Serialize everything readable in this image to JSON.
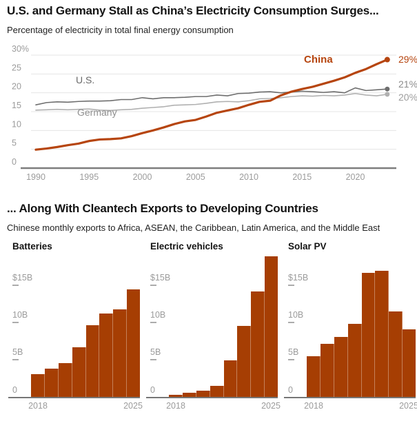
{
  "top_chart": {
    "title": "U.S. and Germany Stall as China’s Electricity Consumption Surges...",
    "subtitle": "Percentage of electricity in total final energy consumption",
    "series_labels": {
      "us": "U.S.",
      "germany": "Germany",
      "china": "China"
    },
    "end_labels": {
      "china": "29%",
      "us": "21%",
      "germany": "20%"
    }
  },
  "bottom": {
    "title": "... Along With Cleantech Exports to Developing Countries",
    "subtitle": "Chinese monthly exports to Africa, ASEAN, the Caribbean, Latin America, and the Middle East"
  },
  "colors": {
    "china_line": "#B6450F",
    "us_line": "#6E6E6E",
    "germany_line": "#B0B0B0",
    "bar_fill": "#A63E03",
    "axis_text": "#9B9B9B",
    "gridline": "#E4E4E4",
    "zero_line": "#7D7D7D"
  },
  "chart_data": [
    {
      "type": "line",
      "title": "U.S. and Germany Stall as China’s Electricity Consumption Surges...",
      "ylabel": "Percentage of electricity in total final energy consumption",
      "ylim": [
        0,
        30
      ],
      "grid": true,
      "x": [
        1990,
        1991,
        1992,
        1993,
        1994,
        1995,
        1996,
        1997,
        1998,
        1999,
        2000,
        2001,
        2002,
        2003,
        2004,
        2005,
        2006,
        2007,
        2008,
        2009,
        2010,
        2011,
        2012,
        2013,
        2014,
        2015,
        2016,
        2017,
        2018,
        2019,
        2020,
        2021,
        2022,
        2023
      ],
      "series": [
        {
          "name": "U.S.",
          "color": "#6E6E6E",
          "end_label": "21%",
          "values": [
            16.8,
            17.4,
            17.6,
            17.5,
            17.7,
            17.8,
            17.8,
            17.9,
            18.2,
            18.2,
            18.7,
            18.4,
            18.7,
            18.7,
            18.8,
            19.0,
            19.0,
            19.4,
            19.2,
            19.8,
            19.9,
            20.2,
            20.3,
            20.0,
            20.2,
            20.4,
            20.3,
            20.1,
            20.3,
            20.0,
            21.3,
            20.6,
            20.8,
            21.0
          ]
        },
        {
          "name": "Germany",
          "color": "#B0B0B0",
          "end_label": "20%",
          "values": [
            15.4,
            15.5,
            15.6,
            15.5,
            15.6,
            15.7,
            15.4,
            15.3,
            15.5,
            15.6,
            15.9,
            16.1,
            16.3,
            16.7,
            16.8,
            16.9,
            17.2,
            17.6,
            17.7,
            17.6,
            17.9,
            18.4,
            18.5,
            18.7,
            19.0,
            19.2,
            19.1,
            19.3,
            19.2,
            19.4,
            19.8,
            19.4,
            19.2,
            19.6
          ]
        },
        {
          "name": "China",
          "color": "#B6450F",
          "end_label": "29%",
          "values": [
            4.9,
            5.2,
            5.6,
            6.1,
            6.5,
            7.2,
            7.6,
            7.7,
            7.9,
            8.5,
            9.3,
            10.0,
            10.8,
            11.7,
            12.4,
            12.8,
            13.7,
            14.7,
            15.3,
            15.9,
            16.8,
            17.6,
            17.9,
            19.3,
            20.3,
            21.0,
            21.6,
            22.4,
            23.2,
            24.1,
            25.3,
            26.3,
            27.6,
            28.8
          ]
        }
      ],
      "yticks": [
        {
          "label": "30%",
          "v": 30
        },
        {
          "label": "25",
          "v": 25
        },
        {
          "label": "20",
          "v": 20
        },
        {
          "label": "15",
          "v": 15
        },
        {
          "label": "10",
          "v": 10
        },
        {
          "label": "5",
          "v": 5
        },
        {
          "label": "0",
          "v": 0
        }
      ],
      "xticks": [
        {
          "label": "1990",
          "v": 1990
        },
        {
          "label": "1995",
          "v": 1995
        },
        {
          "label": "2000",
          "v": 2000
        },
        {
          "label": "2005",
          "v": 2005
        },
        {
          "label": "2010",
          "v": 2010
        },
        {
          "label": "2015",
          "v": 2015
        },
        {
          "label": "2020",
          "v": 2020
        }
      ]
    },
    {
      "type": "bar",
      "title": "Batteries",
      "x": [
        2018,
        2019,
        2020,
        2021,
        2022,
        2023,
        2024,
        2025
      ],
      "values": [
        3.1,
        3.8,
        4.5,
        6.7,
        9.6,
        11.2,
        11.8,
        14.4
      ],
      "ylim": [
        0,
        19
      ],
      "grid": false,
      "yticks": [
        {
          "label": "$15B",
          "v": 15
        },
        {
          "label": "10B",
          "v": 10
        },
        {
          "label": "5B",
          "v": 5
        },
        {
          "label": "0",
          "v": 0
        }
      ],
      "xticks": [
        {
          "label": "2018",
          "i": 0
        },
        {
          "label": "2025",
          "i": 7
        }
      ]
    },
    {
      "type": "bar",
      "title": "Electric vehicles",
      "x": [
        2018,
        2019,
        2020,
        2021,
        2022,
        2023,
        2024,
        2025
      ],
      "values": [
        0.3,
        0.6,
        0.8,
        1.5,
        4.9,
        9.5,
        14.2,
        18.9
      ],
      "ylim": [
        0,
        19
      ],
      "grid": false,
      "yticks": [
        {
          "label": "$15B",
          "v": 15
        },
        {
          "label": "10B",
          "v": 10
        },
        {
          "label": "5B",
          "v": 5
        },
        {
          "label": "0",
          "v": 0
        }
      ],
      "xticks": [
        {
          "label": "2018",
          "i": 0
        },
        {
          "label": "2025",
          "i": 7
        }
      ]
    },
    {
      "type": "bar",
      "title": "Solar PV",
      "x": [
        2018,
        2019,
        2020,
        2021,
        2022,
        2023,
        2024,
        2025
      ],
      "values": [
        5.5,
        7.1,
        8.1,
        9.8,
        16.7,
        16.9,
        11.5,
        9.1
      ],
      "ylim": [
        0,
        19
      ],
      "grid": false,
      "yticks": [
        {
          "label": "$15B",
          "v": 15
        },
        {
          "label": "10B",
          "v": 10
        },
        {
          "label": "5B",
          "v": 5
        },
        {
          "label": "0",
          "v": 0
        }
      ],
      "xticks": [
        {
          "label": "2018",
          "i": 0
        },
        {
          "label": "2025",
          "i": 7
        }
      ]
    }
  ]
}
